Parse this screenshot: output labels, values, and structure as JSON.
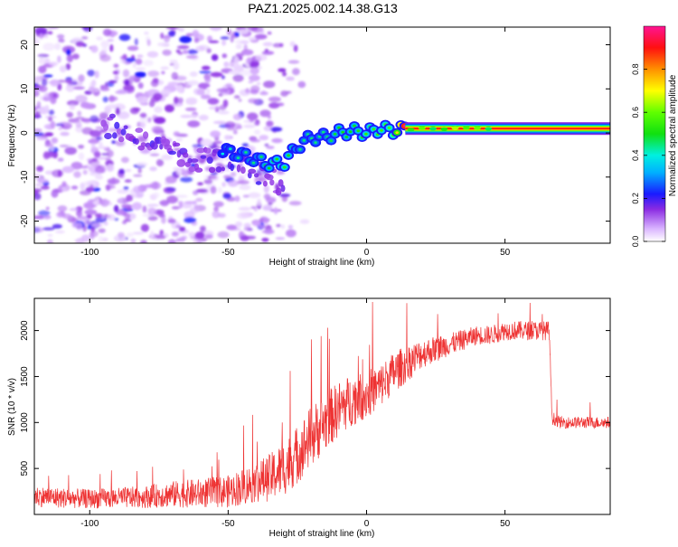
{
  "figure": {
    "title": "PAZ1.2025.002.14.38.G13"
  },
  "chart_data": [
    {
      "type": "heatmap",
      "title": "PAZ1.2025.002.14.38.G13",
      "xlabel": "Height of straight line (km)",
      "ylabel": "Frequency (Hz)",
      "xlim": [
        -120,
        88
      ],
      "ylim": [
        -25,
        24
      ],
      "xticks": [
        -100,
        -50,
        0,
        50
      ],
      "yticks": [
        -20,
        -10,
        0,
        10,
        20
      ],
      "grid": false,
      "colorbar": {
        "label": "Normalized spectral amplitude",
        "range": [
          0,
          1
        ],
        "ticks": [
          0,
          0.2,
          0.4,
          0.6,
          0.8
        ],
        "colormap": "white-purple-blue-cyan-green-yellow-orange-red-magenta"
      },
      "ridge": {
        "x": [
          -52,
          -45,
          -40,
          -35,
          -30,
          -25,
          -20,
          -15,
          -10,
          -5,
          0,
          5,
          10,
          14,
          88
        ],
        "y": [
          -4,
          -5,
          -6,
          -7,
          -7,
          -3,
          -1,
          -1,
          0,
          0.5,
          0,
          1,
          0.5,
          1,
          0.5
        ],
        "amplitude": [
          0.25,
          0.3,
          0.3,
          0.35,
          0.4,
          0.3,
          0.3,
          0.3,
          0.35,
          0.35,
          0.4,
          0.4,
          0.45,
          1.0,
          1.0
        ]
      },
      "noise_region": {
        "x_range": [
          -120,
          -28
        ],
        "y_range": [
          -25,
          24
        ],
        "amplitude_range": [
          0.02,
          0.15
        ]
      },
      "low_altitude_trace": {
        "x": [
          -95,
          -85,
          -75,
          -65,
          -55,
          -45,
          -40,
          -35,
          -30
        ],
        "y": [
          2,
          0,
          -3,
          -6,
          -6,
          -7,
          -9,
          -10,
          -12
        ]
      }
    },
    {
      "type": "line",
      "xlabel": "Height of straight line (km)",
      "ylabel": "SNR (10 * v/v)",
      "xlim": [
        -120,
        88
      ],
      "ylim": [
        0,
        2350
      ],
      "xticks": [
        -100,
        -50,
        0,
        50
      ],
      "yticks": [
        500,
        1000,
        1500,
        2000
      ],
      "grid": false,
      "color": "#ee3333",
      "series": [
        {
          "x": [
            -120,
            -110,
            -100,
            -90,
            -80,
            -70,
            -60,
            -50,
            -45,
            -40,
            -35,
            -30,
            -25,
            -20,
            -15,
            -10,
            -5,
            0,
            5,
            10,
            15,
            20,
            25,
            30,
            35,
            40,
            45,
            50,
            55,
            60,
            65,
            66,
            67,
            70,
            75,
            80,
            88
          ],
          "y": [
            200,
            180,
            170,
            180,
            190,
            220,
            230,
            250,
            300,
            350,
            400,
            500,
            650,
            850,
            1000,
            1150,
            1250,
            1300,
            1400,
            1550,
            1650,
            1750,
            1800,
            1850,
            1900,
            1950,
            1950,
            2000,
            2000,
            2000,
            2000,
            2000,
            1050,
            1000,
            1000,
            1000,
            1000
          ],
          "noise": [
            140,
            140,
            130,
            140,
            150,
            180,
            200,
            220,
            250,
            280,
            320,
            380,
            400,
            420,
            400,
            380,
            350,
            330,
            300,
            280,
            250,
            200,
            180,
            150,
            140,
            130,
            130,
            130,
            130,
            130,
            130,
            130,
            90,
            80,
            80,
            80,
            80
          ]
        }
      ]
    }
  ]
}
